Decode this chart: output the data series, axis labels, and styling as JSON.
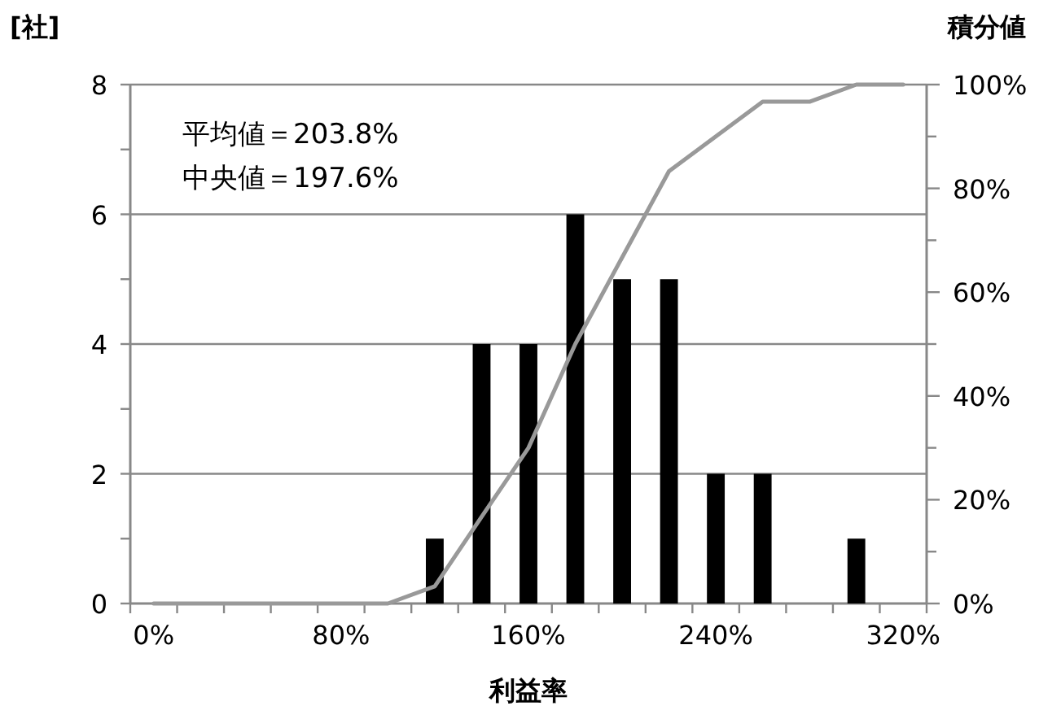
{
  "chart_data": {
    "type": "bar",
    "ylabel": "[社]",
    "y2label": "積分値",
    "xlabel": "利益率",
    "annotations": [
      "平均値＝203.8%",
      "中央値＝197.6%"
    ],
    "categories": [
      "0%",
      null,
      null,
      null,
      "80%",
      null,
      null,
      null,
      "160%",
      null,
      null,
      null,
      "240%",
      null,
      null,
      null,
      "320%"
    ],
    "series": [
      {
        "color": "#000000",
        "values": [
          0,
          0,
          0,
          0,
          0,
          0,
          1,
          4,
          4,
          6,
          5,
          5,
          2,
          2,
          0,
          1,
          0
        ]
      },
      {
        "type": "line",
        "axis": "y2",
        "color": "#999999",
        "values": [
          0,
          0,
          0,
          0,
          0,
          0,
          3.3,
          16.7,
          30,
          50,
          66.7,
          83.3,
          90,
          96.7,
          96.7,
          100,
          100
        ]
      }
    ],
    "ylim": [
      0,
      8
    ],
    "yticks": [
      0,
      {
        "value": 1,
        "label": null
      },
      2,
      {
        "value": 3,
        "label": null
      },
      4,
      {
        "value": 5,
        "label": null
      },
      6,
      {
        "value": 7,
        "label": null
      },
      8
    ],
    "y2lim": [
      0,
      100
    ],
    "y2ticks": [
      {
        "value": 0,
        "label": "0%"
      },
      {
        "value": 10,
        "label": null
      },
      {
        "value": 20,
        "label": "20%"
      },
      {
        "value": 30,
        "label": null
      },
      {
        "value": 40,
        "label": "40%"
      },
      {
        "value": 50,
        "label": null
      },
      {
        "value": 60,
        "label": "60%"
      },
      {
        "value": 70,
        "label": null
      },
      {
        "value": 80,
        "label": "80%"
      },
      {
        "value": 90,
        "label": null
      },
      {
        "value": 100,
        "label": "100%"
      }
    ],
    "grid": "y",
    "marker": "none",
    "line_style": "solid"
  }
}
